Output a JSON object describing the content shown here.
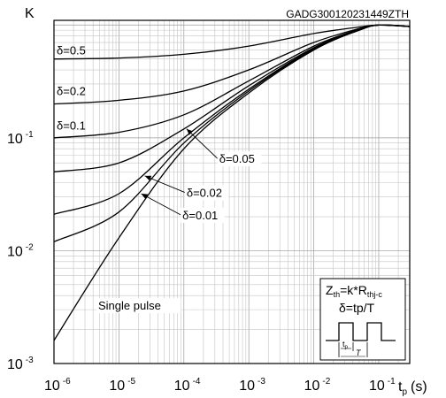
{
  "chart_data": {
    "type": "line",
    "code": "GADG300120231449ZTH",
    "ylabel": "K",
    "xlabel_main": "t",
    "xlabel_sub": "p",
    "xlabel_unit": "(s)",
    "x_log": true,
    "y_log": true,
    "xlim": [
      1e-06,
      0.3
    ],
    "ylim": [
      0.001,
      1.1
    ],
    "grid": true,
    "x_ticks": [
      {
        "base": "10",
        "exp": "-6",
        "value": 1e-06
      },
      {
        "base": "10",
        "exp": "-5",
        "value": 1e-05
      },
      {
        "base": "10",
        "exp": "-4",
        "value": 0.0001
      },
      {
        "base": "10",
        "exp": "-3",
        "value": 0.001
      },
      {
        "base": "10",
        "exp": "-2",
        "value": 0.01
      },
      {
        "base": "10",
        "exp": "-1",
        "value": 0.1
      }
    ],
    "y_ticks": [
      {
        "base": "10",
        "exp": "-3",
        "value": 0.001
      },
      {
        "base": "10",
        "exp": "-2",
        "value": 0.01
      },
      {
        "base": "10",
        "exp": "-1",
        "value": 0.1
      }
    ],
    "series": [
      {
        "name": "δ=0.5",
        "x": [
          1e-06,
          1e-05,
          0.0001,
          0.001,
          0.01,
          0.05,
          0.1,
          0.3
        ],
        "y": [
          0.5,
          0.51,
          0.55,
          0.65,
          0.84,
          0.96,
          1.0,
          0.97
        ]
      },
      {
        "name": "δ=0.2",
        "x": [
          1e-06,
          1e-05,
          0.0001,
          0.001,
          0.01,
          0.05,
          0.1,
          0.3
        ],
        "y": [
          0.2,
          0.215,
          0.26,
          0.4,
          0.7,
          0.93,
          1.0,
          0.97
        ]
      },
      {
        "name": "δ=0.1",
        "x": [
          1e-06,
          1e-05,
          0.0001,
          0.001,
          0.01,
          0.05,
          0.1,
          0.3
        ],
        "y": [
          0.1,
          0.112,
          0.16,
          0.32,
          0.65,
          0.92,
          1.0,
          0.97
        ]
      },
      {
        "name": "δ=0.05",
        "x": [
          1e-06,
          1e-05,
          0.0001,
          0.001,
          0.01,
          0.05,
          0.1,
          0.3
        ],
        "y": [
          0.05,
          0.06,
          0.12,
          0.29,
          0.63,
          0.91,
          1.0,
          0.97
        ]
      },
      {
        "name": "δ=0.02",
        "x": [
          1e-06,
          1e-05,
          0.0001,
          0.001,
          0.01,
          0.05,
          0.1,
          0.3
        ],
        "y": [
          0.021,
          0.032,
          0.1,
          0.27,
          0.62,
          0.9,
          1.0,
          0.97
        ]
      },
      {
        "name": "δ=0.01",
        "x": [
          1e-06,
          1e-05,
          0.0001,
          0.001,
          0.01,
          0.05,
          0.1,
          0.3
        ],
        "y": [
          0.012,
          0.022,
          0.09,
          0.26,
          0.61,
          0.9,
          1.0,
          0.97
        ]
      },
      {
        "name": "Single pulse",
        "x": [
          1e-06,
          1e-05,
          0.0001,
          0.001,
          0.01,
          0.05,
          0.1,
          0.3
        ],
        "y": [
          0.0016,
          0.013,
          0.08,
          0.25,
          0.6,
          0.9,
          1.0,
          0.97
        ]
      }
    ],
    "curve_labels": [
      {
        "text": "δ=0.5",
        "x": 1e-06,
        "y": 0.55
      },
      {
        "text": "δ=0.2",
        "x": 1e-06,
        "y": 0.24
      },
      {
        "text": "δ=0.1",
        "x": 1e-06,
        "y": 0.118
      }
    ],
    "annotations": [
      {
        "text": "δ=0.05",
        "text_x": 0.00035,
        "text_y": 0.06,
        "arrow_x": 0.00011,
        "arrow_y": 0.12
      },
      {
        "text": "δ=0.02",
        "text_x": 0.00011,
        "text_y": 0.03,
        "arrow_x": 2.5e-05,
        "arrow_y": 0.046
      },
      {
        "text": "δ=0.01",
        "text_x": 9.5e-05,
        "text_y": 0.019,
        "arrow_x": 2.2e-05,
        "arrow_y": 0.032
      },
      {
        "text": "Single pulse",
        "text_x": 4.8e-06,
        "text_y": 0.003
      }
    ],
    "inset": {
      "formula1_main": "Z",
      "formula1_sub": "th",
      "formula1_mid": "=k*R",
      "formula1_sub2": "thj-c",
      "formula2": "δ=tp/T",
      "pulse_label_t": "t",
      "pulse_label_p": "p",
      "pulse_label_T": "T"
    }
  }
}
